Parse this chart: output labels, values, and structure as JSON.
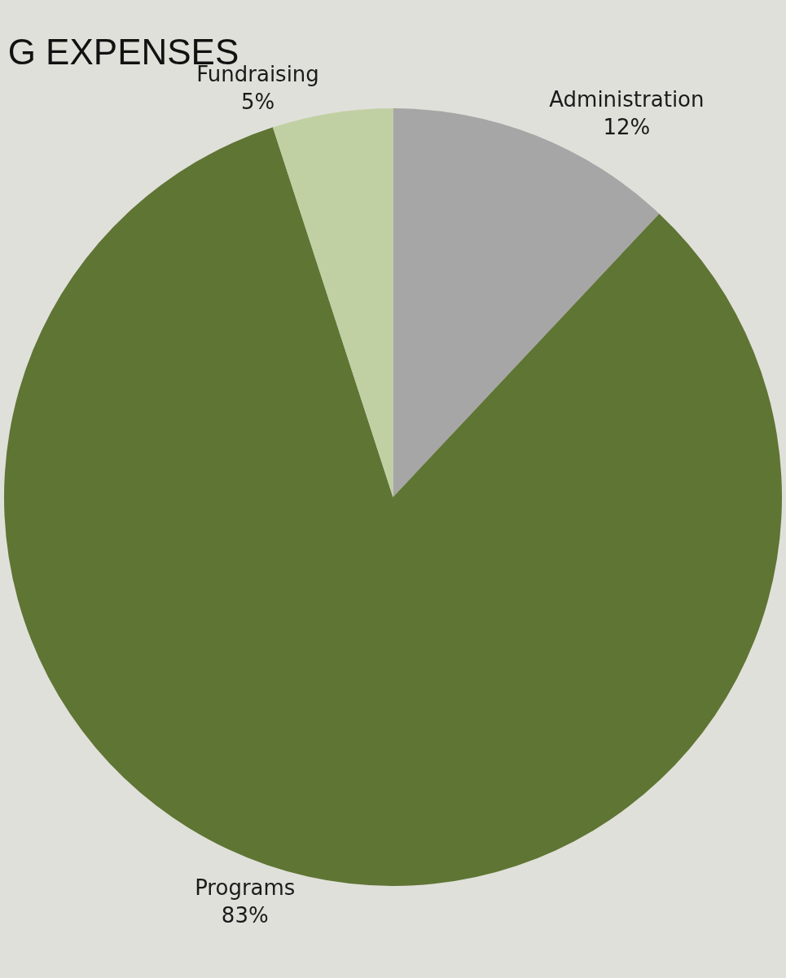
{
  "chart_data": {
    "type": "pie",
    "title": "G EXPENSES",
    "categories": [
      "Administration",
      "Programs",
      "Fundraising"
    ],
    "values": [
      12,
      83,
      5
    ],
    "value_labels": [
      "12%",
      "83%",
      "5%"
    ],
    "colors": [
      "#a6a6a6",
      "#5f7534",
      "#c1d0a3"
    ]
  }
}
